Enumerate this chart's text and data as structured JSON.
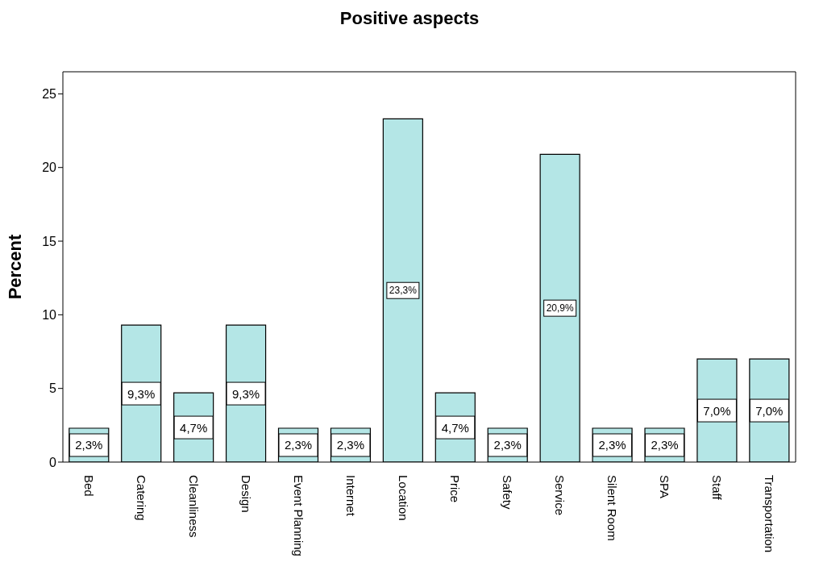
{
  "chart_data": {
    "type": "bar",
    "title": "Positive aspects",
    "ylabel": "Percent",
    "categories": [
      "Bed",
      "Catering",
      "Cleanliness",
      "Design",
      "Event Planning",
      "Internet",
      "Location",
      "Price",
      "Safety",
      "Service",
      "Silent Room",
      "SPA",
      "Staff",
      "Transportation"
    ],
    "values": [
      2.3,
      9.3,
      4.7,
      9.3,
      2.3,
      2.3,
      23.3,
      4.7,
      2.3,
      20.9,
      2.3,
      2.3,
      7.0,
      7.0
    ],
    "value_labels": [
      "2,3%",
      "9,3%",
      "4,7%",
      "9,3%",
      "2,3%",
      "2,3%",
      "23,3%",
      "4,7%",
      "2,3%",
      "20,9%",
      "2,3%",
      "2,3%",
      "7,0%",
      "7,0%"
    ],
    "color": "#b4e6e6",
    "ylim": [
      0,
      26.5
    ],
    "yticks": [
      0,
      5,
      10,
      15,
      20,
      25
    ]
  }
}
